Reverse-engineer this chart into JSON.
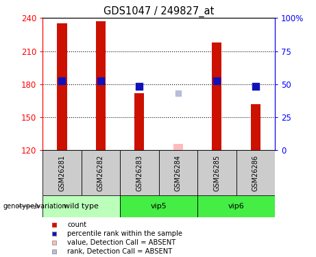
{
  "title": "GDS1047 / 249827_at",
  "samples": [
    "GSM26281",
    "GSM26282",
    "GSM26283",
    "GSM26284",
    "GSM26285",
    "GSM26286"
  ],
  "groups": [
    {
      "name": "wild type",
      "indices": [
        0,
        1
      ],
      "color": "#bbffbb"
    },
    {
      "name": "vip5",
      "indices": [
        2,
        3
      ],
      "color": "#44ee44"
    },
    {
      "name": "vip6",
      "indices": [
        4,
        5
      ],
      "color": "#44ee44"
    }
  ],
  "bar_values": [
    235,
    237,
    172,
    null,
    218,
    162
  ],
  "rank_values": [
    183,
    183,
    178,
    null,
    183,
    178
  ],
  "absent_bar_value": 126,
  "absent_rank_value": 172,
  "absent_index": 3,
  "ylim_left": [
    120,
    240
  ],
  "ylim_right": [
    0,
    100
  ],
  "yticks_left": [
    120,
    150,
    180,
    210,
    240
  ],
  "yticks_right": [
    0,
    25,
    50,
    75,
    100
  ],
  "bar_color": "#cc1100",
  "rank_color": "#1111bb",
  "absent_bar_color": "#ffbbbb",
  "absent_rank_color": "#bbbbdd",
  "grid_values": [
    150,
    180,
    210
  ],
  "bar_width": 0.25,
  "rank_marker_size": 55,
  "absent_rank_marker_size": 40,
  "legend_items": [
    {
      "label": "count",
      "color": "#cc1100"
    },
    {
      "label": "percentile rank within the sample",
      "color": "#1111bb"
    },
    {
      "label": "value, Detection Call = ABSENT",
      "color": "#ffbbbb"
    },
    {
      "label": "rank, Detection Call = ABSENT",
      "color": "#bbbbdd"
    }
  ]
}
